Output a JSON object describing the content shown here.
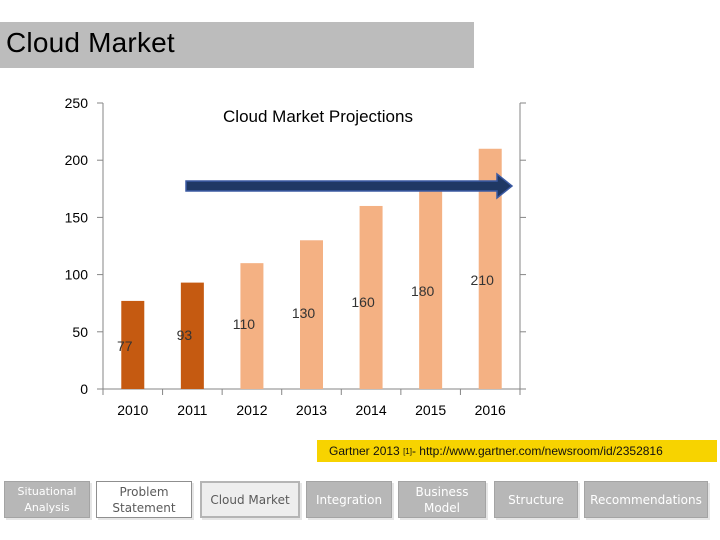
{
  "slide": {
    "title": "Cloud Market",
    "source_prefix": "Gartner 2013",
    "source_ref": "[1]",
    "source_suffix": " - http://www.gartner.com/newsroom/id/2352816"
  },
  "nav": {
    "items": [
      {
        "label_line1": "Situational",
        "label_line2": "Analysis"
      },
      {
        "label_line1": "Problem",
        "label_line2": "Statement"
      },
      {
        "label": "Cloud Market"
      },
      {
        "label": "Integration"
      },
      {
        "label_line1": "Business",
        "label_line2": "Model"
      },
      {
        "label": "Structure"
      },
      {
        "label": "Recommendations"
      }
    ]
  },
  "chart_data": {
    "type": "bar",
    "title": "Cloud Market Projections",
    "categories": [
      "2010",
      "2011",
      "2012",
      "2013",
      "2014",
      "2015",
      "2016"
    ],
    "values": [
      77,
      93,
      110,
      130,
      160,
      180,
      210
    ],
    "actual_color": "#c55a11",
    "projection_color": "#f4b183",
    "actual_count": 2,
    "ylim": [
      0,
      250
    ],
    "yticks": [
      0,
      50,
      100,
      150,
      200,
      250
    ],
    "xlabel": "",
    "ylabel": "",
    "grid": false,
    "annotation": "arrow",
    "arrow_color": "#1f3864"
  }
}
